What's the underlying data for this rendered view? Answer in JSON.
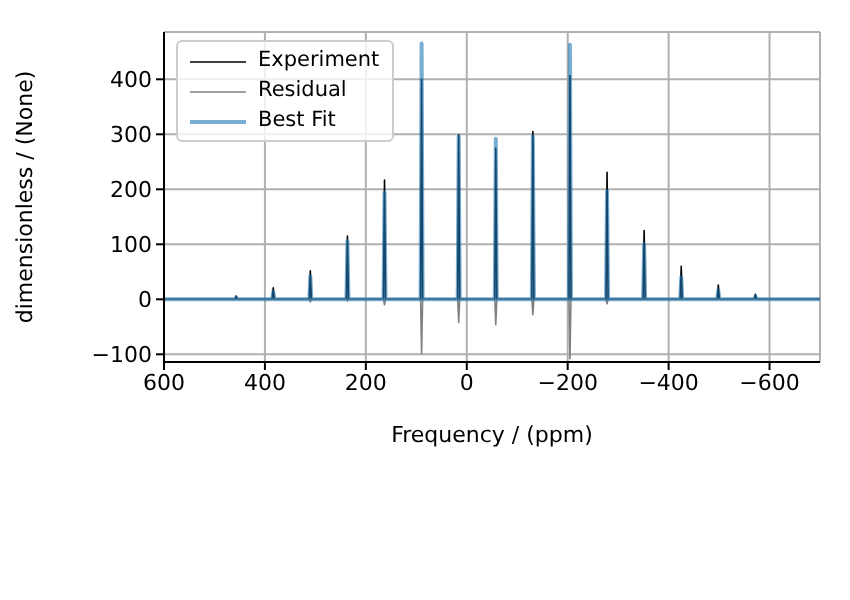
{
  "chart_data": {
    "type": "line",
    "xlabel": "Frequency / (ppm)",
    "ylabel": "dimensionless / (None)",
    "x": [
      600,
      459,
      457,
      455,
      385.5,
      383.5,
      381.5,
      312,
      310,
      308,
      238.5,
      236.5,
      234.5,
      165,
      163,
      161,
      91.5,
      89.5,
      87.5,
      18,
      16,
      14,
      -55.5,
      -57.5,
      -59.5,
      -129,
      -131,
      -133,
      -202.5,
      -204.5,
      -206.5,
      -276,
      -278,
      -280,
      -349.5,
      -351.5,
      -353.5,
      -423,
      -425,
      -427,
      -496.5,
      -498.5,
      -500.5,
      -570,
      -572,
      -574,
      -700
    ],
    "series": [
      {
        "name": "Experiment",
        "color": "#000000",
        "values": [
          0,
          0,
          6,
          0,
          0,
          21,
          0,
          0,
          52,
          0,
          0,
          115,
          0,
          0,
          217,
          0,
          0,
          400,
          0,
          0,
          299,
          0,
          0,
          275,
          0,
          0,
          305,
          0,
          0,
          407,
          0,
          0,
          231,
          0,
          0,
          125,
          0,
          0,
          60,
          0,
          0,
          26,
          0,
          0,
          9,
          0,
          0
        ]
      },
      {
        "name": "Residual",
        "color": "#808080",
        "values": [
          0,
          0,
          0,
          0,
          0,
          0,
          0,
          0,
          -5,
          0,
          0,
          -3,
          0,
          0,
          -10,
          0,
          0,
          -99,
          0,
          0,
          -42,
          0,
          0,
          -46,
          0,
          0,
          -28,
          0,
          0,
          -108,
          0,
          0,
          -8,
          0,
          0,
          0,
          0,
          0,
          0,
          0,
          0,
          0,
          0,
          0,
          0,
          0,
          0
        ]
      },
      {
        "name": "Best Fit",
        "color": "#1f77b4",
        "values": [
          0,
          0,
          3,
          0,
          0,
          14,
          0,
          0,
          42,
          0,
          0,
          106,
          0,
          0,
          194,
          0,
          0,
          465,
          0,
          0,
          296,
          0,
          0,
          292,
          0,
          0,
          296,
          0,
          0,
          463,
          0,
          0,
          197,
          0,
          0,
          100,
          0,
          0,
          40,
          0,
          0,
          16,
          0,
          0,
          5,
          0,
          0
        ]
      }
    ],
    "xlim": [
      600,
      -700
    ],
    "xticks": [
      600,
      400,
      200,
      0,
      {
        "value": -200,
        "label": "−200"
      },
      {
        "value": -400,
        "label": "−400"
      },
      {
        "value": -600,
        "label": "−600"
      }
    ],
    "ylim": [
      -114,
      486
    ],
    "yticks": [
      {
        "value": -100,
        "label": "−100"
      },
      0,
      100,
      200,
      300,
      400
    ],
    "grid": true,
    "legend": "top left",
    "marker": "none",
    "line_style": "solid"
  }
}
